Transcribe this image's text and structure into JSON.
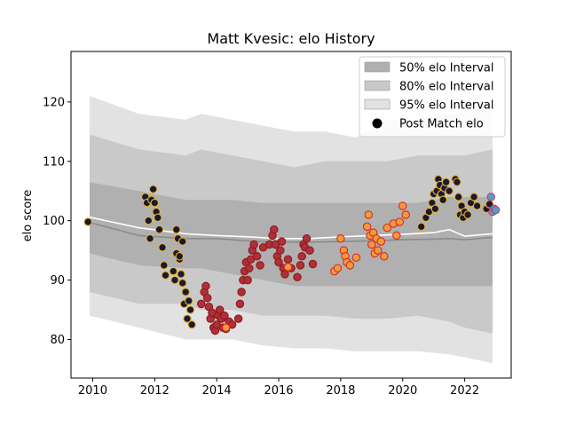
{
  "chart_data": {
    "type": "scatter",
    "title": "Matt Kvesic: elo History",
    "xlabel": "",
    "ylabel": "elo score",
    "xlim": [
      2009.3,
      2023.5
    ],
    "ylim": [
      73.5,
      128.5
    ],
    "xticks": [
      2010,
      2012,
      2014,
      2016,
      2018,
      2020,
      2022
    ],
    "yticks": [
      80,
      90,
      100,
      110,
      120
    ],
    "grid": false,
    "legend_position": "top-right",
    "legend": [
      {
        "label": "50% elo Interval",
        "kind": "band",
        "color": "#b0b0b0"
      },
      {
        "label": "80% elo Interval",
        "kind": "band",
        "color": "#c9c9c9"
      },
      {
        "label": "95% elo Interval",
        "kind": "band",
        "color": "#e2e2e2"
      },
      {
        "label": "Post Match elo",
        "kind": "marker",
        "color": "#000000"
      }
    ],
    "colors": {
      "band50": "#b0b0b0",
      "band80": "#c9c9c9",
      "band95": "#e2e2e2",
      "median_line": "#8c8c8c",
      "mean_line": "#ffffff",
      "point_fill_dark": "#1a1a2e",
      "point_fill_red": "#b0303a",
      "point_fill_orange": "#f29a3a",
      "point_edge_gold": "#e8b23a",
      "point_edge_red": "#d62828",
      "point_fill_blue": "#4aa3c8",
      "point_edge_pink": "#d6336c"
    },
    "bands": {
      "x": [
        2009.9,
        2011.5,
        2013.0,
        2013.5,
        2014.5,
        2015.5,
        2016.5,
        2017.5,
        2018.5,
        2019.5,
        2020.5,
        2021.5,
        2022.0,
        2022.9
      ],
      "p95_hi": [
        121,
        118,
        117,
        118,
        117,
        116,
        115,
        115,
        114,
        117,
        117,
        118,
        118,
        120
      ],
      "p80_hi": [
        114.5,
        112,
        111,
        112,
        111,
        110,
        109,
        110,
        110,
        110,
        111,
        111,
        111,
        112
      ],
      "p50_hi": [
        106.5,
        105,
        103.5,
        103.5,
        103.5,
        103,
        103,
        103,
        103,
        103,
        103,
        104,
        104,
        104
      ],
      "p50_lo": [
        94.5,
        92.5,
        92,
        92,
        91,
        90,
        89,
        89,
        89,
        89,
        89,
        89,
        89,
        89
      ],
      "p80_lo": [
        88,
        86,
        86,
        85,
        85,
        84,
        84,
        84,
        83.5,
        83.5,
        84,
        83,
        82,
        81
      ],
      "p95_lo": [
        84,
        82,
        80,
        80,
        80,
        79,
        78.5,
        78.5,
        78,
        78,
        78,
        77.5,
        77,
        76
      ]
    },
    "median_line": {
      "x": [
        2009.9,
        2011.5,
        2013.0,
        2014.0,
        2015.0,
        2016.0,
        2017.0,
        2018.0,
        2019.0,
        2020.0,
        2021.0,
        2021.5,
        2022.0,
        2022.9
      ],
      "y": [
        99.7,
        97.5,
        97.0,
        97.0,
        96.6,
        96.4,
        96.4,
        96.5,
        96.6,
        96.8,
        96.9,
        97.0,
        96.8,
        97.2
      ]
    },
    "mean_line": {
      "x": [
        2009.9,
        2011.5,
        2013.0,
        2014.0,
        2015.0,
        2016.0,
        2017.0,
        2018.0,
        2019.0,
        2020.0,
        2021.0,
        2021.5,
        2022.0,
        2022.9
      ],
      "y": [
        100.6,
        98.8,
        97.8,
        97.5,
        97.3,
        97.0,
        97.0,
        97.3,
        97.5,
        97.7,
        98.0,
        98.5,
        97.4,
        97.8
      ]
    },
    "series": [
      {
        "group": "early",
        "fill": "#1a1a2e",
        "edge": "#e8b23a",
        "x": [
          2009.85,
          2011.7,
          2011.75,
          2011.8,
          2011.85,
          2011.9,
          2011.95,
          2012.0,
          2012.05,
          2012.1,
          2012.15,
          2012.25,
          2012.3,
          2012.35,
          2012.6,
          2012.65,
          2012.7,
          2012.75,
          2012.8,
          2012.85,
          2012.9,
          2012.95,
          2013.0,
          2013.05,
          2013.1,
          2013.15,
          2013.2,
          2012.7,
          2012.8,
          2012.9
        ],
        "y": [
          99.8,
          104.0,
          103.0,
          100.0,
          97.0,
          103.5,
          105.3,
          103.0,
          101.5,
          100.5,
          98.5,
          95.5,
          92.5,
          90.8,
          91.5,
          90.0,
          94.5,
          97.0,
          93.5,
          91.0,
          89.5,
          86.0,
          88.0,
          83.5,
          86.5,
          85.0,
          82.5,
          98.5,
          94.0,
          96.5
        ]
      },
      {
        "group": "middle",
        "fill": "#b0303a",
        "edge": "#8b1a1a",
        "x": [
          2013.5,
          2013.6,
          2013.65,
          2013.7,
          2013.75,
          2013.8,
          2013.85,
          2013.9,
          2013.95,
          2014.0,
          2014.05,
          2014.1,
          2014.15,
          2014.2,
          2014.25,
          2014.3,
          2014.4,
          2014.5,
          2014.7,
          2014.75,
          2014.8,
          2014.85,
          2014.9,
          2014.95,
          2015.0,
          2015.05,
          2015.1,
          2015.15,
          2015.2,
          2015.3,
          2015.4,
          2015.5,
          2015.7,
          2015.8,
          2015.85,
          2015.9,
          2015.95,
          2016.0,
          2016.05,
          2016.1,
          2016.15,
          2016.2,
          2016.3,
          2016.4,
          2016.6,
          2016.7,
          2016.75,
          2016.8,
          2016.85,
          2016.9,
          2017.0,
          2017.1
        ],
        "y": [
          86.0,
          88.0,
          89.0,
          87.0,
          85.5,
          83.5,
          84.5,
          82.0,
          81.5,
          82.5,
          84.0,
          85.0,
          83.5,
          82.0,
          84.0,
          81.8,
          83.0,
          82.5,
          83.5,
          86.0,
          88.0,
          90.0,
          91.5,
          93.0,
          90.0,
          92.0,
          93.5,
          95.0,
          96.0,
          94.0,
          92.5,
          95.5,
          96.0,
          97.5,
          98.5,
          96.0,
          94.0,
          93.0,
          95.0,
          96.5,
          92.0,
          91.0,
          93.5,
          92.0,
          90.5,
          92.5,
          94.0,
          96.0,
          95.5,
          97.0,
          95.0,
          92.7
        ]
      },
      {
        "group": "late-orange",
        "fill": "#f29a3a",
        "edge": "#d62828",
        "x": [
          2014.3,
          2016.3,
          2017.8,
          2017.9,
          2018.0,
          2018.1,
          2018.15,
          2018.2,
          2018.3,
          2018.5,
          2018.85,
          2018.9,
          2018.95,
          2019.0,
          2019.05,
          2019.1,
          2019.15,
          2019.2,
          2019.3,
          2019.4,
          2019.5,
          2019.7,
          2019.8,
          2019.9,
          2020.0,
          2020.1
        ],
        "y": [
          82.0,
          92.2,
          91.5,
          92.0,
          97.0,
          95.0,
          94.0,
          93.0,
          92.5,
          93.8,
          99.0,
          101.0,
          97.5,
          96.0,
          98.0,
          94.5,
          97.0,
          95.0,
          96.5,
          94.0,
          98.8,
          99.5,
          97.5,
          99.8,
          102.5,
          101.0
        ]
      },
      {
        "group": "recent",
        "fill": "#1a1a2e",
        "edge": "#e8b23a",
        "x": [
          2020.6,
          2020.75,
          2020.85,
          2020.95,
          2021.0,
          2021.05,
          2021.1,
          2021.15,
          2021.2,
          2021.25,
          2021.3,
          2021.35,
          2021.4,
          2021.5,
          2021.7,
          2021.75,
          2021.8,
          2021.85,
          2021.9,
          2021.95,
          2022.0,
          2022.1,
          2022.2,
          2022.3,
          2022.4,
          2022.7,
          2022.8
        ],
        "y": [
          99.0,
          100.5,
          101.5,
          103.0,
          104.5,
          102.0,
          105.0,
          107.0,
          106.0,
          104.5,
          103.5,
          105.5,
          106.5,
          105.0,
          107.0,
          106.5,
          104.0,
          101.0,
          102.5,
          100.5,
          101.5,
          101.0,
          103.0,
          104.0,
          102.5,
          102.0,
          102.8
        ]
      },
      {
        "group": "latest",
        "fill": "#4aa3c8",
        "edge": "#d6336c",
        "x": [
          2022.85,
          2022.9,
          2022.95,
          2023.0
        ],
        "y": [
          104.0,
          101.5,
          102.0,
          101.8
        ]
      }
    ]
  }
}
